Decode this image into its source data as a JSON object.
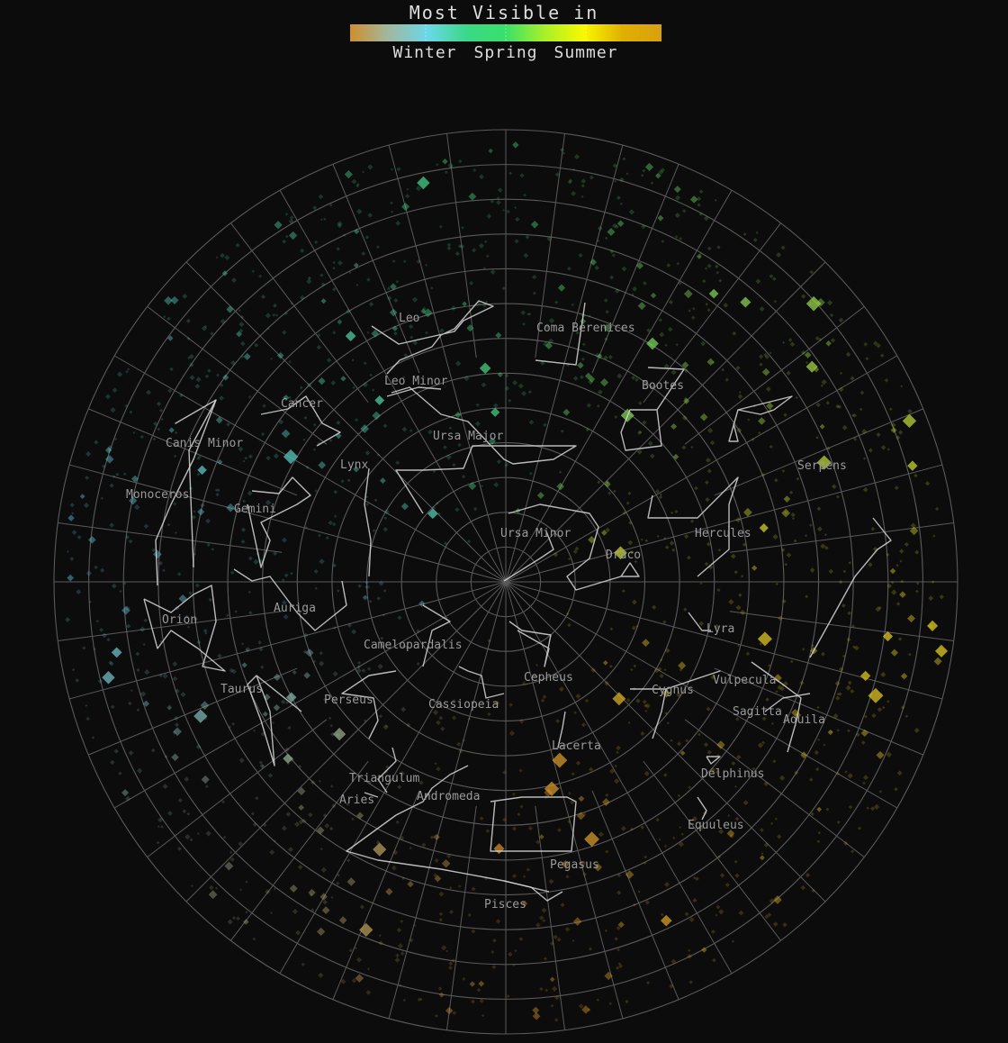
{
  "legend": {
    "title": "Most Visible in",
    "labels": [
      "Winter",
      "Spring",
      "Summer"
    ],
    "gradient_colors": [
      "#cf8f2c",
      "#a0b8a0",
      "#6ad8e8",
      "#3ad888",
      "#39e06a",
      "#a8f028",
      "#f8f800",
      "#e0b000",
      "#d8a010"
    ]
  },
  "colors": {
    "background": "#0c0c0c",
    "grid": "#5a5a5a",
    "line": "#d8d8d8",
    "label": "#9a9a9a",
    "winter": "#62c2e0",
    "spring": "#3fd07a",
    "summer": "#e0d020",
    "autumn": "#d08a2a"
  },
  "chart_data": {
    "type": "polar-star-map",
    "projection": "north-polar",
    "constellations": [
      {
        "name": "Leo",
        "season": "spring"
      },
      {
        "name": "Coma Berenices",
        "season": "spring"
      },
      {
        "name": "Leo Minor",
        "season": "spring"
      },
      {
        "name": "Cancer",
        "season": "winter"
      },
      {
        "name": "Bootes",
        "season": "spring"
      },
      {
        "name": "Canis Minor",
        "season": "winter"
      },
      {
        "name": "Ursa Major",
        "season": "spring"
      },
      {
        "name": "Lynx",
        "season": "winter"
      },
      {
        "name": "Serpens",
        "season": "summer"
      },
      {
        "name": "Monoceros",
        "season": "winter"
      },
      {
        "name": "Gemini",
        "season": "winter"
      },
      {
        "name": "Ursa Minor",
        "season": "spring"
      },
      {
        "name": "Hercules",
        "season": "summer"
      },
      {
        "name": "Draco",
        "season": "summer"
      },
      {
        "name": "Auriga",
        "season": "winter"
      },
      {
        "name": "Orion",
        "season": "winter"
      },
      {
        "name": "Lyra",
        "season": "summer"
      },
      {
        "name": "Camelopardalis",
        "season": "winter"
      },
      {
        "name": "Cepheus",
        "season": "autumn"
      },
      {
        "name": "Vulpecula",
        "season": "summer"
      },
      {
        "name": "Taurus",
        "season": "winter"
      },
      {
        "name": "Cygnus",
        "season": "summer"
      },
      {
        "name": "Perseus",
        "season": "autumn"
      },
      {
        "name": "Cassiopeia",
        "season": "autumn"
      },
      {
        "name": "Sagitta",
        "season": "summer"
      },
      {
        "name": "Aquila",
        "season": "summer"
      },
      {
        "name": "Lacerta",
        "season": "autumn"
      },
      {
        "name": "Delphinus",
        "season": "summer"
      },
      {
        "name": "Triangulum",
        "season": "autumn"
      },
      {
        "name": "Aries",
        "season": "autumn"
      },
      {
        "name": "Andromeda",
        "season": "autumn"
      },
      {
        "name": "Equuleus",
        "season": "summer"
      },
      {
        "name": "Pegasus",
        "season": "autumn"
      },
      {
        "name": "Pisces",
        "season": "autumn"
      }
    ]
  }
}
